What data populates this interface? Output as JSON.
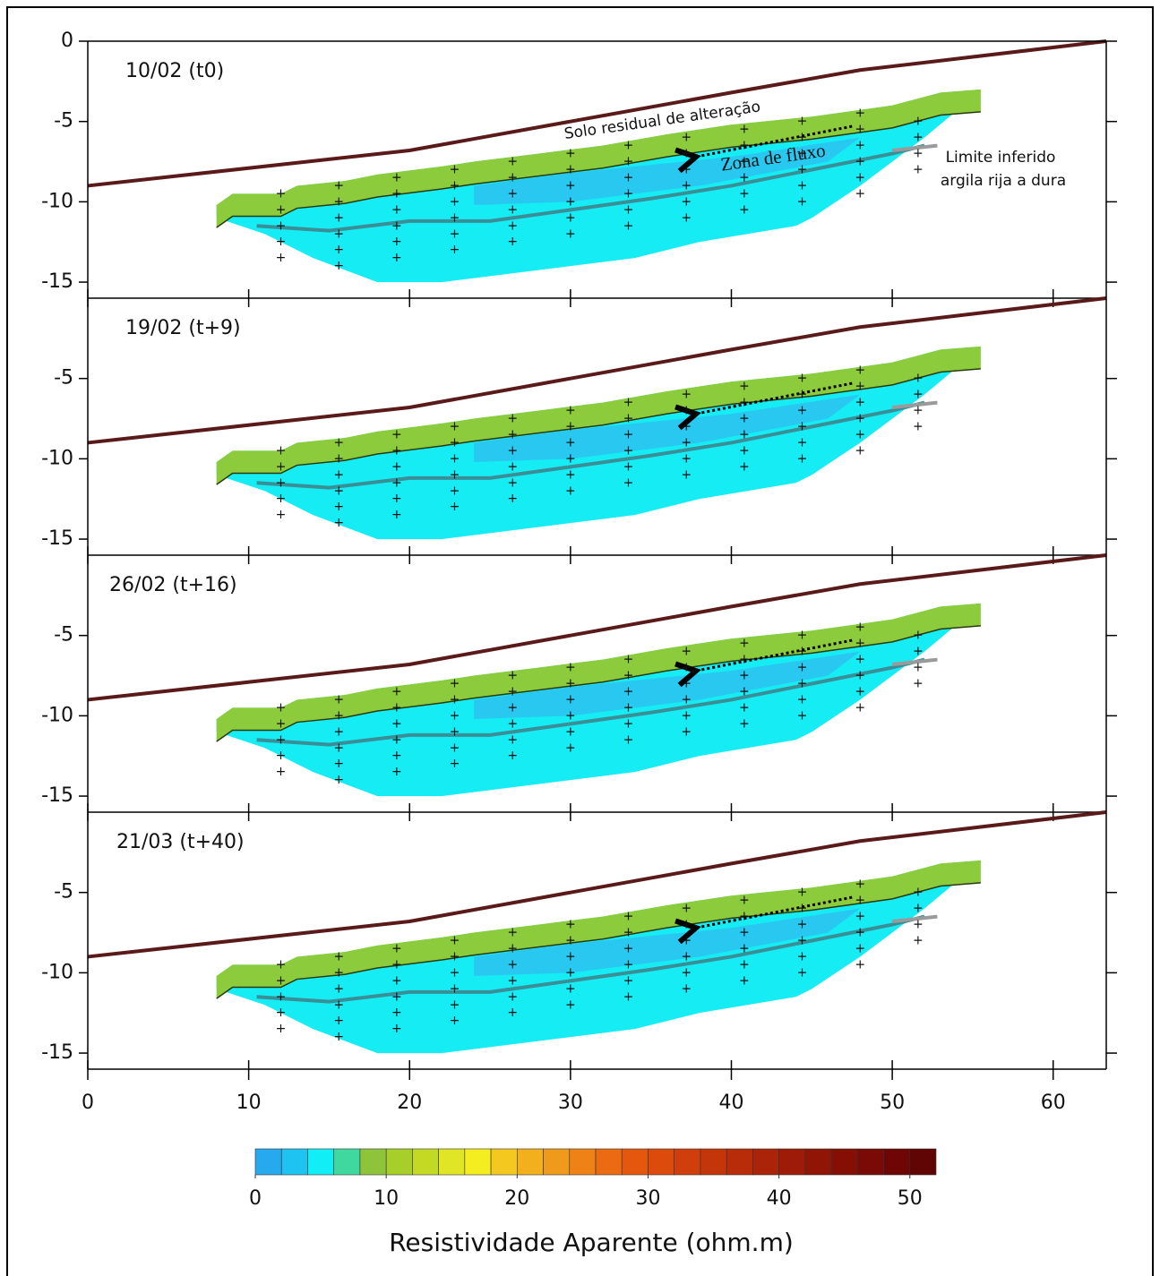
{
  "chart_data": {
    "type": "section",
    "panels": [
      {
        "label": "10/02 (t0)",
        "yticks": [
          0,
          -5,
          -10,
          -15
        ]
      },
      {
        "label": "19/02 (t+9)",
        "yticks": [
          -5,
          -10,
          -15
        ]
      },
      {
        "label": "26/02 (t+16)",
        "yticks": [
          -5,
          -10,
          -15
        ]
      },
      {
        "label": "21/03 (t+40)",
        "yticks": [
          -5,
          -10,
          -15
        ]
      }
    ],
    "xlim": [
      0,
      63.3
    ],
    "xticks": [
      0,
      10,
      20,
      30,
      40,
      50,
      60
    ],
    "ylim": [
      -16,
      0
    ],
    "annotations": [
      "Solo residual de alteração",
      "Zona de fluxo",
      "Limite inferido",
      "argila rija a dura"
    ],
    "colorbar": {
      "title": "Resistividade Aparente (ohm.m)",
      "lim": [
        0,
        52
      ],
      "ticks": [
        0,
        10,
        20,
        30,
        40,
        50
      ],
      "colors": [
        "#27a9f0",
        "#1ec3f2",
        "#12eef5",
        "#3fd9a0",
        "#8dc43a",
        "#a6cf2a",
        "#c3da25",
        "#e0e625",
        "#f4ee20",
        "#f5c81f",
        "#f1b01c",
        "#ef9a1a",
        "#ee8216",
        "#ec6a12",
        "#e6570e",
        "#dc4a0c",
        "#d03f0b",
        "#c4350a",
        "#b82c09",
        "#ab2308",
        "#9e1c07",
        "#911506",
        "#850f05",
        "#790a05",
        "#6d0604",
        "#610404"
      ]
    }
  }
}
